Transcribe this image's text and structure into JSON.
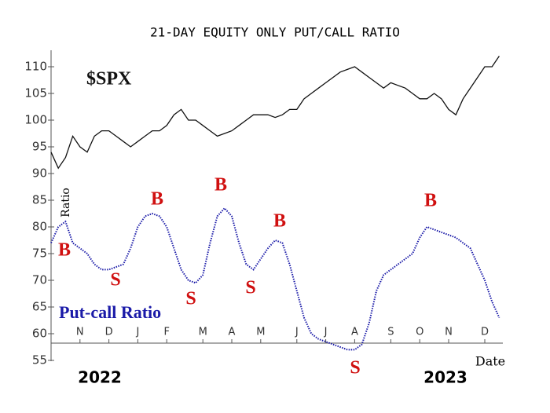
{
  "chart_data": {
    "type": "line",
    "title": "21-DAY EQUITY ONLY PUT/CALL RATIO",
    "x_label": "Date",
    "y_label": "Ratio",
    "year_labels": [
      "2022",
      "2023"
    ],
    "categories": [
      null,
      null,
      null,
      null,
      "N",
      null,
      null,
      null,
      "D",
      null,
      null,
      null,
      "J",
      null,
      null,
      null,
      "F",
      null,
      null,
      null,
      null,
      "M",
      null,
      null,
      null,
      "A",
      null,
      null,
      null,
      "M",
      null,
      null,
      null,
      null,
      "J",
      null,
      null,
      null,
      "J",
      null,
      null,
      null,
      "A",
      null,
      null,
      null,
      null,
      "S",
      null,
      null,
      null,
      "O",
      null,
      null,
      null,
      "N",
      null,
      null,
      null,
      null,
      "D",
      null,
      null
    ],
    "series": [
      {
        "name": "$SPX",
        "color": "#111111",
        "values": [
          94,
          91,
          93,
          97,
          95,
          94,
          97,
          98,
          98,
          97,
          96,
          95,
          96,
          97,
          98,
          98,
          99,
          101,
          102,
          100,
          100,
          99,
          98,
          97,
          97.5,
          98,
          99,
          100,
          101,
          101,
          101,
          100.5,
          101,
          102,
          102,
          104,
          105,
          106,
          107,
          108,
          109,
          109.5,
          110,
          109,
          108,
          107,
          106,
          107,
          106.5,
          106,
          105,
          104,
          104,
          105,
          104,
          102,
          101,
          104,
          106,
          108,
          110,
          110,
          112
        ]
      },
      {
        "name": "Put-call Ratio",
        "color": "#1a1aa8",
        "values": [
          77,
          80,
          81,
          77,
          76,
          75,
          73,
          72,
          72,
          72.5,
          73,
          76,
          80,
          82,
          82.5,
          82,
          80,
          76,
          72,
          70,
          69.5,
          71,
          77,
          82,
          83.5,
          82,
          77,
          73,
          72,
          74,
          76,
          77.5,
          77,
          73,
          68,
          63,
          60,
          59,
          58.5,
          58,
          57.5,
          57,
          57,
          58,
          62,
          68,
          71,
          72,
          73,
          74,
          75,
          78,
          80,
          79.5,
          79,
          78.5,
          78,
          77,
          76,
          73,
          70,
          66,
          63
        ]
      }
    ],
    "annotations": [
      "B",
      "S",
      "B",
      "S",
      "B",
      "S",
      "B",
      "S",
      "B"
    ],
    "annotation_color": "#d01010",
    "ylim": [
      55,
      113
    ],
    "yticks": [
      55,
      60,
      65,
      70,
      75,
      80,
      85,
      90,
      95,
      100,
      105,
      110
    ],
    "grid": false
  }
}
